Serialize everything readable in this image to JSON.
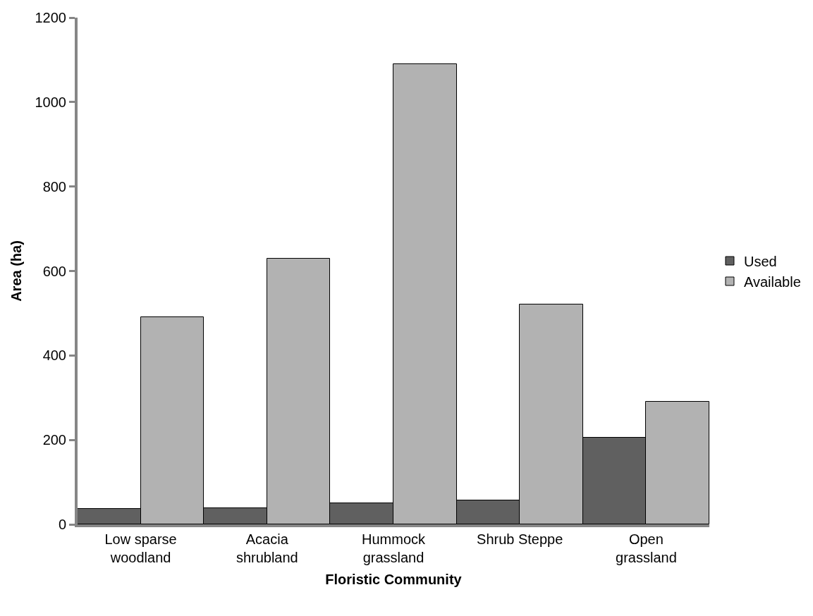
{
  "chart_data": {
    "type": "bar",
    "xlabel": "Floristic Community",
    "ylabel": "Area (ha)",
    "categories": [
      "Low sparse woodland",
      "Acacia shrubland",
      "Hummock grassland",
      "Shrub Steppe",
      "Open grassland"
    ],
    "series": [
      {
        "name": "Used",
        "color": "#606060",
        "values": [
          37,
          38,
          50,
          56,
          205
        ]
      },
      {
        "name": "Available",
        "color": "#b2b2b2",
        "values": [
          490,
          630,
          1090,
          520,
          290
        ]
      }
    ],
    "ylim": [
      0,
      1200
    ],
    "yticks": [
      0,
      200,
      400,
      600,
      800,
      1000,
      1200
    ],
    "legend": "right"
  }
}
